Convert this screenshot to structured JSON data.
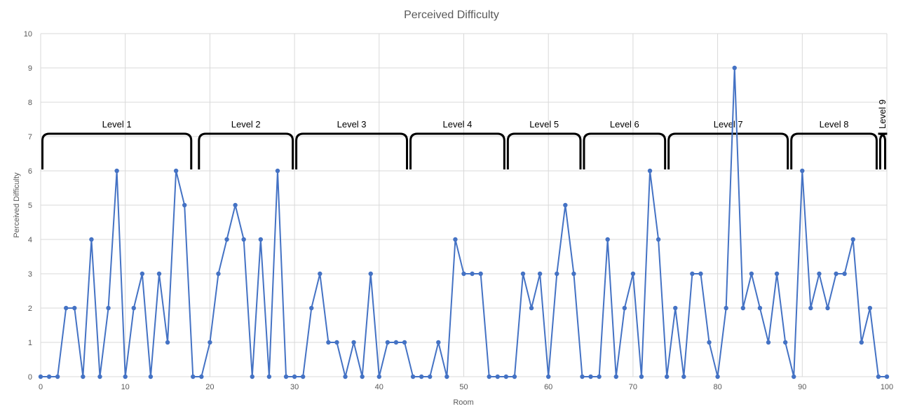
{
  "chart_data": {
    "type": "line",
    "title": "Perceived Difficulty",
    "xlabel": "Room",
    "ylabel": "Perceived Difficulty",
    "xlim": [
      0,
      100
    ],
    "ylim": [
      0,
      10
    ],
    "x_ticks": [
      0,
      10,
      20,
      30,
      40,
      50,
      60,
      70,
      80,
      90,
      100
    ],
    "y_ticks": [
      0,
      1,
      2,
      3,
      4,
      5,
      6,
      7,
      8,
      9,
      10
    ],
    "grid": true,
    "color": "#4472c4",
    "x": [
      0,
      1,
      2,
      3,
      4,
      5,
      6,
      7,
      8,
      9,
      10,
      11,
      12,
      13,
      14,
      15,
      16,
      17,
      18,
      19,
      20,
      21,
      22,
      23,
      24,
      25,
      26,
      27,
      28,
      29,
      30,
      31,
      32,
      33,
      34,
      35,
      36,
      37,
      38,
      39,
      40,
      41,
      42,
      43,
      44,
      45,
      46,
      47,
      48,
      49,
      50,
      51,
      52,
      53,
      54,
      55,
      56,
      57,
      58,
      59,
      60,
      61,
      62,
      63,
      64,
      65,
      66,
      67,
      68,
      69,
      70,
      71,
      72,
      73,
      74,
      75,
      76,
      77,
      78,
      79,
      80,
      81,
      82,
      83,
      84,
      85,
      86,
      87,
      88,
      89,
      90,
      91,
      92,
      93,
      94,
      95,
      96,
      97,
      98,
      99,
      100
    ],
    "y": [
      0,
      0,
      0,
      2,
      2,
      0,
      4,
      0,
      2,
      6,
      0,
      2,
      3,
      0,
      3,
      1,
      6,
      5,
      0,
      0,
      1,
      3,
      4,
      5,
      4,
      0,
      4,
      0,
      6,
      0,
      0,
      0,
      2,
      3,
      1,
      1,
      0,
      1,
      0,
      3,
      0,
      1,
      1,
      1,
      0,
      0,
      0,
      1,
      0,
      4,
      3,
      3,
      3,
      0,
      0,
      0,
      0,
      3,
      2,
      3,
      0,
      3,
      5,
      3,
      0,
      0,
      0,
      4,
      0,
      2,
      3,
      0,
      6,
      4,
      0,
      2,
      0,
      3,
      3,
      1,
      0,
      2,
      9,
      2,
      3,
      2,
      1,
      3,
      1,
      0,
      6,
      2,
      3,
      2,
      3,
      3,
      4,
      1,
      2,
      0,
      0
    ],
    "levels": [
      {
        "label": "Level 1",
        "start": 0,
        "end": 18
      },
      {
        "label": "Level 2",
        "start": 18.5,
        "end": 30
      },
      {
        "label": "Level 3",
        "start": 30,
        "end": 43.5
      },
      {
        "label": "Level 4",
        "start": 43.5,
        "end": 55
      },
      {
        "label": "Level 5",
        "start": 55,
        "end": 64
      },
      {
        "label": "Level 6",
        "start": 64,
        "end": 74
      },
      {
        "label": "Level 7",
        "start": 74,
        "end": 88.5
      },
      {
        "label": "Level 8",
        "start": 88.5,
        "end": 99
      },
      {
        "label": "Level 9",
        "start": 99,
        "end": 100
      }
    ]
  }
}
